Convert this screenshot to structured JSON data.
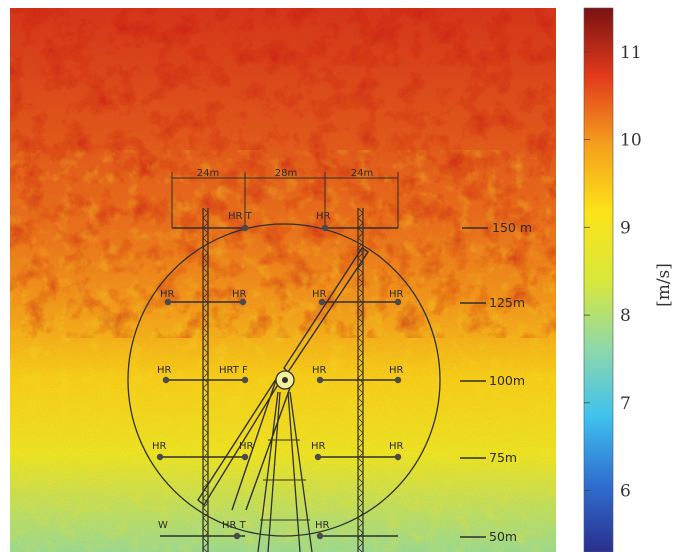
{
  "chart_data": {
    "type": "heatmap",
    "description_kind": "wind speed field with wind turbine measurement mast overlay",
    "colorbar": {
      "label": "[m/s]",
      "range": [
        5.3,
        11.5
      ],
      "ticks": [
        6,
        7,
        8,
        9,
        10,
        11
      ],
      "colormap": [
        "#2a2f8f",
        "#2f6fd0",
        "#3fc2ee",
        "#8fd8a8",
        "#d9e83a",
        "#fbe318",
        "#f59e1c",
        "#e23a1c",
        "#7a1212"
      ]
    },
    "field_profile": {
      "heights": [
        "top",
        "150 m",
        "125 m",
        "100 m",
        "75 m",
        "50 m"
      ],
      "mean_speed": [
        10.8,
        10.3,
        10.0,
        9.4,
        8.9,
        7.8
      ]
    },
    "overlay": {
      "spacing_labels": [
        "24m",
        "28m",
        "24m"
      ],
      "height_labels": [
        "150 m",
        "125m",
        "100m",
        "75m",
        "50m"
      ],
      "instrument_labels": {
        "r150": [
          "HR T",
          "HR"
        ],
        "r125": [
          "HR",
          "HR",
          "HR",
          "HR"
        ],
        "r100": [
          "HR",
          "HRT F",
          "HR",
          "HR"
        ],
        "r75": [
          "HR",
          "HR",
          "HR",
          "HR"
        ],
        "r50": [
          "W",
          "HR T",
          "HR"
        ]
      }
    }
  }
}
